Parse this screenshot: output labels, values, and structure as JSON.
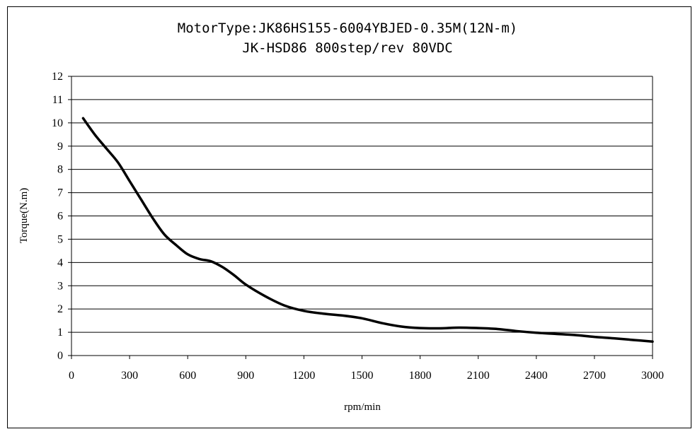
{
  "chart_data": {
    "type": "line",
    "title": "MotorType:JK86HS155-6004YBJED-0.35M(12N-m)",
    "subtitle": "JK-HSD86 800step/rev 80VDC",
    "xlabel": "rpm/min",
    "ylabel": "Torque(N.m)",
    "xlim": [
      0,
      3000
    ],
    "ylim": [
      0,
      12
    ],
    "xticks": [
      0,
      300,
      600,
      900,
      1200,
      1500,
      1800,
      2100,
      2400,
      2700,
      3000
    ],
    "yticks": [
      0,
      1,
      2,
      3,
      4,
      5,
      6,
      7,
      8,
      9,
      10,
      11,
      12
    ],
    "grid": "horizontal",
    "legend": "none",
    "line_color": "#000000",
    "series": [
      {
        "x": [
          60,
          120,
          180,
          240,
          300,
          360,
          420,
          480,
          540,
          600,
          660,
          720,
          780,
          840,
          900,
          1000,
          1100,
          1200,
          1300,
          1400,
          1500,
          1600,
          1700,
          1800,
          1900,
          2000,
          2100,
          2200,
          2300,
          2400,
          2500,
          2600,
          2700,
          2800,
          2900,
          3000
        ],
        "values": [
          10.2,
          9.5,
          8.9,
          8.3,
          7.5,
          6.7,
          5.9,
          5.2,
          4.75,
          4.35,
          4.15,
          4.05,
          3.8,
          3.45,
          3.05,
          2.55,
          2.15,
          1.92,
          1.8,
          1.72,
          1.6,
          1.4,
          1.25,
          1.18,
          1.17,
          1.2,
          1.18,
          1.14,
          1.05,
          0.98,
          0.93,
          0.88,
          0.8,
          0.74,
          0.67,
          0.6
        ]
      }
    ]
  }
}
